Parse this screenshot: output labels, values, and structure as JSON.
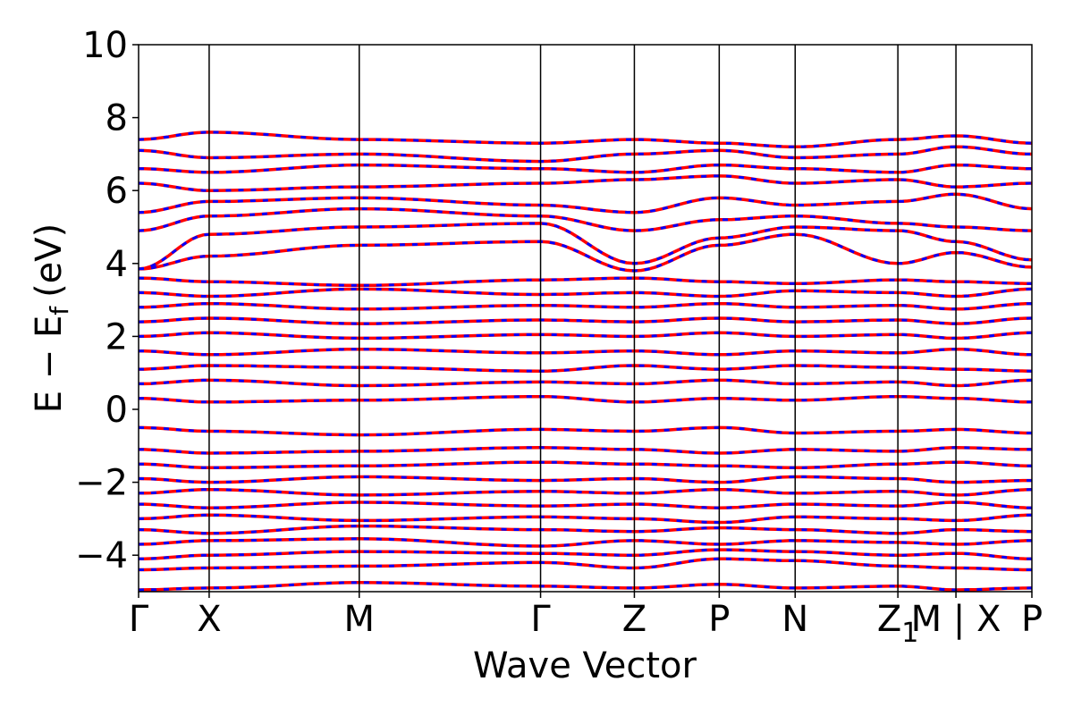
{
  "chart_data": {
    "type": "line",
    "title": "",
    "xlabel": "Wave Vector",
    "ylabel_main": "E − E",
    "ylabel_sub": "f",
    "ylabel_unit": "(eV)",
    "ylim": [
      -5,
      10
    ],
    "yticks": [
      "−4",
      "−2",
      "0",
      "2",
      "4",
      "6",
      "8",
      "10"
    ],
    "ytick_values": [
      -4,
      -2,
      0,
      2,
      4,
      6,
      8,
      10
    ],
    "xlim": [
      0,
      10.0
    ],
    "kpoints": [
      {
        "label": "Γ",
        "x": 0.0
      },
      {
        "label": "X",
        "x": 0.79
      },
      {
        "label": "M",
        "x": 2.47
      },
      {
        "label": "Γ",
        "x": 4.5
      },
      {
        "label": "Z",
        "x": 5.55
      },
      {
        "label": "P",
        "x": 6.5
      },
      {
        "label": "N",
        "x": 7.35
      },
      {
        "label": "Z",
        "sub": "1",
        "x": 8.5
      },
      {
        "label": "M | X",
        "x": 9.15
      },
      {
        "label": "P",
        "x": 10.0
      }
    ],
    "grid": false,
    "legend": "none",
    "series": [
      {
        "color": "#ff0000",
        "style": "solid"
      },
      {
        "color": "#0000ff",
        "style": "dashed"
      }
    ],
    "bands": [
      [
        -4.95,
        -4.9,
        -4.75,
        -4.85,
        -4.9,
        -4.8,
        -4.9,
        -4.85,
        -4.95,
        -4.9,
        -4.85
      ],
      [
        -4.4,
        -4.35,
        -4.3,
        -4.2,
        -4.35,
        -4.1,
        -4.15,
        -4.3,
        -4.35,
        -4.4,
        -4.3
      ],
      [
        -4.1,
        -4.0,
        -3.9,
        -3.95,
        -4.0,
        -3.85,
        -3.9,
        -4.0,
        -3.95,
        -4.1,
        -4.0
      ],
      [
        -3.7,
        -3.6,
        -3.55,
        -3.75,
        -3.6,
        -3.7,
        -3.6,
        -3.65,
        -3.7,
        -3.6,
        -3.7
      ],
      [
        -3.3,
        -3.4,
        -3.2,
        -3.3,
        -3.35,
        -3.25,
        -3.3,
        -3.4,
        -3.3,
        -3.35,
        -3.3
      ],
      [
        -3.0,
        -2.9,
        -3.05,
        -2.95,
        -3.0,
        -3.1,
        -2.95,
        -3.0,
        -3.05,
        -2.9,
        -3.0
      ],
      [
        -2.6,
        -2.7,
        -2.55,
        -2.65,
        -2.6,
        -2.7,
        -2.6,
        -2.65,
        -2.55,
        -2.7,
        -2.6
      ],
      [
        -2.3,
        -2.2,
        -2.35,
        -2.25,
        -2.3,
        -2.2,
        -2.3,
        -2.25,
        -2.35,
        -2.2,
        -2.3
      ],
      [
        -1.9,
        -2.0,
        -1.85,
        -1.95,
        -1.9,
        -2.0,
        -1.85,
        -1.9,
        -2.0,
        -1.95,
        -1.9
      ],
      [
        -1.5,
        -1.6,
        -1.55,
        -1.45,
        -1.5,
        -1.55,
        -1.6,
        -1.5,
        -1.45,
        -1.55,
        -1.5
      ],
      [
        -1.1,
        -1.2,
        -1.15,
        -1.05,
        -1.1,
        -1.2,
        -1.1,
        -1.15,
        -1.05,
        -1.1,
        -1.2
      ],
      [
        -0.5,
        -0.6,
        -0.7,
        -0.55,
        -0.6,
        -0.5,
        -0.65,
        -0.6,
        -0.55,
        -0.65,
        -0.6
      ],
      [
        0.3,
        0.2,
        0.25,
        0.35,
        0.2,
        0.3,
        0.25,
        0.35,
        0.3,
        0.2,
        0.25
      ],
      [
        0.7,
        0.8,
        0.65,
        0.75,
        0.7,
        0.8,
        0.7,
        0.75,
        0.65,
        0.8,
        0.7
      ],
      [
        1.1,
        1.2,
        1.15,
        1.05,
        1.2,
        1.1,
        1.2,
        1.15,
        1.1,
        1.05,
        1.2
      ],
      [
        1.6,
        1.5,
        1.65,
        1.55,
        1.6,
        1.5,
        1.6,
        1.55,
        1.65,
        1.5,
        1.6
      ],
      [
        2.0,
        2.1,
        1.95,
        2.05,
        2.0,
        2.1,
        2.0,
        2.05,
        1.95,
        2.1,
        2.0
      ],
      [
        2.4,
        2.5,
        2.35,
        2.45,
        2.4,
        2.5,
        2.4,
        2.45,
        2.35,
        2.5,
        2.4
      ],
      [
        2.8,
        2.9,
        2.75,
        2.85,
        2.8,
        2.9,
        2.8,
        2.85,
        2.75,
        2.9,
        2.8
      ],
      [
        3.2,
        3.1,
        3.3,
        3.15,
        3.2,
        3.1,
        3.25,
        3.2,
        3.1,
        3.3,
        3.2
      ],
      [
        3.6,
        3.5,
        3.4,
        3.55,
        3.6,
        3.5,
        3.45,
        3.55,
        3.5,
        3.45,
        3.55
      ],
      [
        3.85,
        4.2,
        4.5,
        4.6,
        3.8,
        4.5,
        4.8,
        4.0,
        4.3,
        3.9,
        4.6
      ],
      [
        3.85,
        4.8,
        5.0,
        5.1,
        4.0,
        4.7,
        5.0,
        4.9,
        4.6,
        4.1,
        4.9
      ],
      [
        4.9,
        5.3,
        5.5,
        5.3,
        4.9,
        5.2,
        5.3,
        5.1,
        5.0,
        4.9,
        5.2
      ],
      [
        5.4,
        5.7,
        5.8,
        5.6,
        5.4,
        5.8,
        5.6,
        5.7,
        5.9,
        5.5,
        5.8
      ],
      [
        6.2,
        6.0,
        6.1,
        6.2,
        6.3,
        6.4,
        6.2,
        6.3,
        6.1,
        6.2,
        6.0
      ],
      [
        6.6,
        6.5,
        6.7,
        6.6,
        6.5,
        6.7,
        6.6,
        6.5,
        6.7,
        6.6,
        6.5
      ],
      [
        7.1,
        6.9,
        7.0,
        6.8,
        7.0,
        7.1,
        6.9,
        7.0,
        7.2,
        7.0,
        7.1
      ],
      [
        7.4,
        7.6,
        7.4,
        7.3,
        7.4,
        7.3,
        7.2,
        7.4,
        7.5,
        7.3,
        7.3
      ]
    ]
  }
}
